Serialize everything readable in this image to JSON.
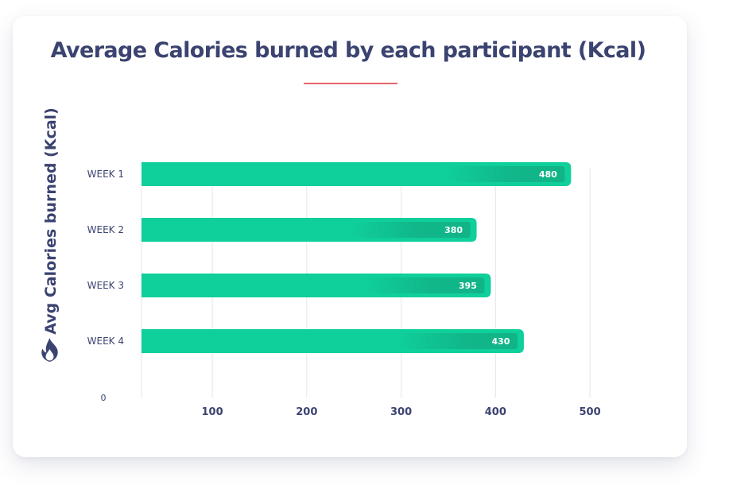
{
  "chart_data": {
    "type": "bar",
    "orientation": "horizontal",
    "title": "Average Calories burned by each participant (Kcal)",
    "xlabel": "",
    "ylabel": "Avg Calories burned (Kcal)",
    "categories": [
      "WEEK 1",
      "WEEK 2",
      "WEEK 3",
      "WEEK 4"
    ],
    "values": [
      480,
      380,
      395,
      430
    ],
    "value_labels": [
      "480",
      "380",
      "395",
      "430"
    ],
    "x_ticks": [
      "100",
      "200",
      "300",
      "400",
      "500"
    ],
    "x_tick_values": [
      100,
      200,
      300,
      400,
      500
    ],
    "origin_label": "0",
    "xlim": [
      25,
      500
    ],
    "grid": "vertical",
    "legend": "none",
    "colors": {
      "bar": "#0fcf9a",
      "bar_label_bg": "#11b487",
      "title": "#3b4370",
      "accent_line": "#e8656c",
      "grid": "#e4e6ee",
      "axis_text": "#3b4370",
      "icon": "#3b4370"
    },
    "icon": "fire-icon"
  }
}
